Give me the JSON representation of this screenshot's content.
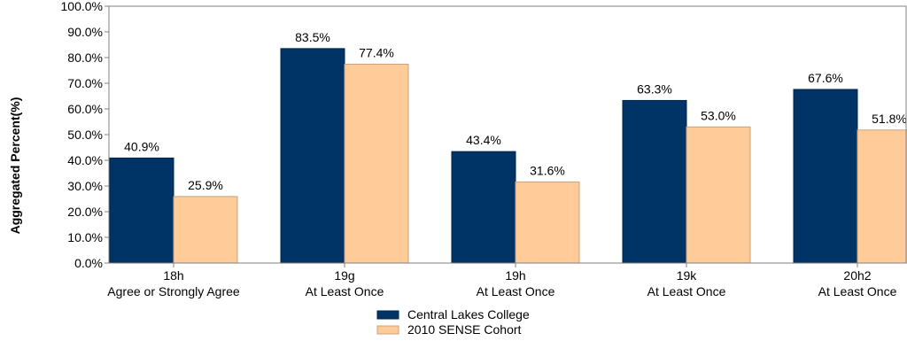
{
  "chart_data": {
    "type": "bar",
    "ylabel": "Aggregated Percent(%)",
    "ylim": [
      0,
      100
    ],
    "y_tick_labels": [
      "0.0%",
      "10.0%",
      "20.0%",
      "30.0%",
      "40.0%",
      "50.0%",
      "60.0%",
      "70.0%",
      "80.0%",
      "90.0%",
      "100.0%"
    ],
    "categories": [
      {
        "code": "18h",
        "label": "Agree or Strongly Agree"
      },
      {
        "code": "19g",
        "label": "At Least Once"
      },
      {
        "code": "19h",
        "label": "At Least Once"
      },
      {
        "code": "19k",
        "label": "At Least Once"
      },
      {
        "code": "20h2",
        "label": "At Least Once"
      }
    ],
    "series": [
      {
        "name": "Central Lakes College",
        "color": "#003366",
        "values": [
          40.9,
          83.5,
          43.4,
          63.3,
          67.6
        ],
        "labels": [
          "40.9%",
          "83.5%",
          "43.4%",
          "63.3%",
          "67.6%"
        ]
      },
      {
        "name": "2010 SENSE Cohort",
        "color": "#FFCC99",
        "values": [
          25.9,
          77.4,
          31.6,
          53.0,
          51.8
        ],
        "labels": [
          "25.9%",
          "77.4%",
          "31.6%",
          "53.0%",
          "51.8%"
        ]
      }
    ],
    "legend_position": "bottom",
    "grid": false
  }
}
